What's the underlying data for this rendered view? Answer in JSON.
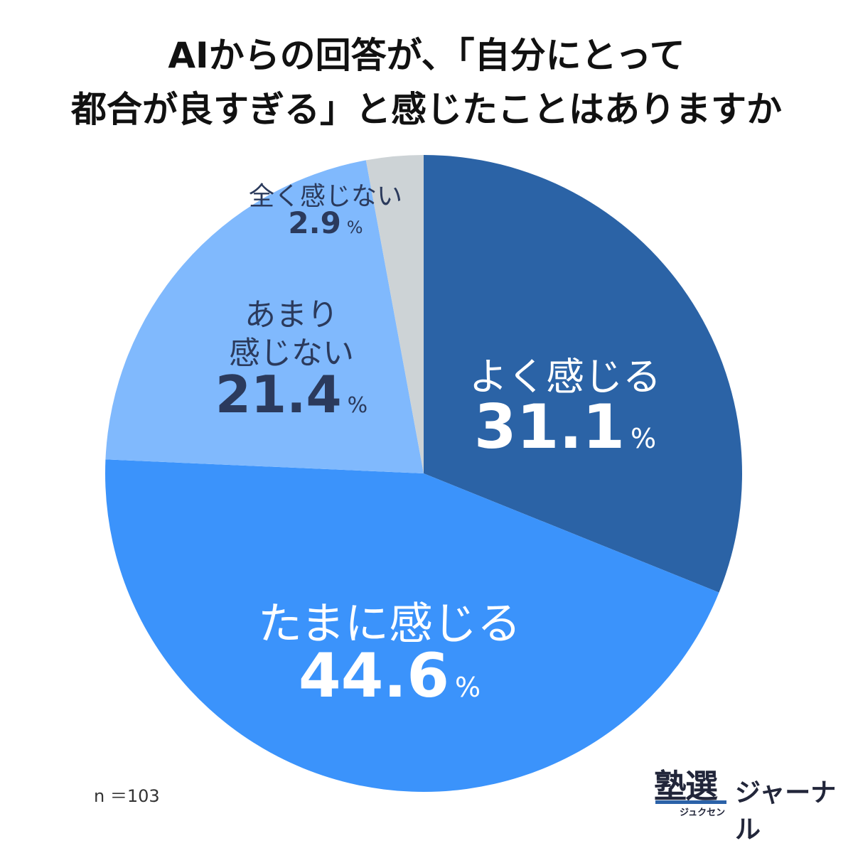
{
  "title_lines": [
    "AIからの回答が、「自分にとって",
    "都合が良すぎる」と感じたことはありますか"
  ],
  "chart_data": {
    "type": "pie",
    "title": "AIからの回答が、「自分にとって都合が良すぎる」と感じたことはありますか",
    "unit": "%",
    "slices": [
      {
        "label_lines": [
          "よく感じる"
        ],
        "value": 31.1,
        "display": "31.1",
        "color": "#2b63a6",
        "text_color": "#ffffff"
      },
      {
        "label_lines": [
          "たまに感じる"
        ],
        "value": 44.6,
        "display": "44.6",
        "color": "#3b93fb",
        "text_color": "#ffffff"
      },
      {
        "label_lines": [
          "あまり",
          "感じない"
        ],
        "value": 21.4,
        "display": "21.4",
        "color": "#80b9fd",
        "text_color": "#2b3a5c"
      },
      {
        "label_lines": [
          "全く感じない"
        ],
        "value": 2.9,
        "display": "2.9",
        "color": "#cdd3d6",
        "text_color": "#2b3a5c"
      }
    ]
  },
  "sample_size": "n ＝103",
  "logo": {
    "kanji": "塾選",
    "kana": "ジュクセン",
    "word": "ジャーナル",
    "accent": "#2b62a8"
  }
}
